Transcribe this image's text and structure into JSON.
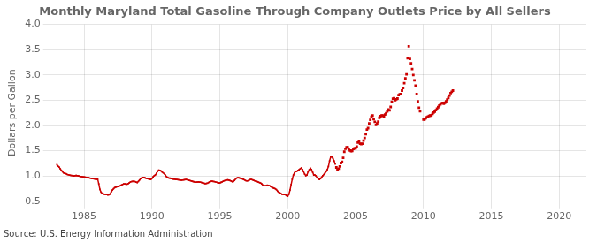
{
  "chart_data": {
    "type": "line",
    "title": "Monthly Maryland Total Gasoline Through Company Outlets Price by All Sellers",
    "y_label": "Dollars per Gallon",
    "source": "Source: U.S. Energy Information Administration",
    "xlim": [
      1982.5,
      2022
    ],
    "ylim": [
      0.5,
      4.0
    ],
    "xticks": [
      1985,
      1990,
      1995,
      2000,
      2005,
      2010,
      2015,
      2020
    ],
    "yticks": [
      0.5,
      {
        "value": 1.0,
        "label": "1.0"
      },
      1.5,
      {
        "value": 2.0,
        "label": "2.0"
      },
      2.5,
      {
        "value": 3.0,
        "label": "3.0"
      },
      3.5,
      {
        "value": 4.0,
        "label": "4.0"
      }
    ],
    "grid": true,
    "series": [
      {
        "type": "line",
        "color": "#cc0000",
        "marker": "square",
        "x": [
          1983.0,
          1983.083,
          1983.167,
          1983.25,
          1983.333,
          1983.417,
          1983.5,
          1983.583,
          1983.667,
          1983.75,
          1983.833,
          1983.917,
          1984.0,
          1984.083,
          1984.167,
          1984.25,
          1984.333,
          1984.417,
          1984.5,
          1984.583,
          1984.667,
          1984.75,
          1984.833,
          1984.917,
          1985.0,
          1985.083,
          1985.167,
          1985.25,
          1985.333,
          1985.417,
          1985.5,
          1985.583,
          1985.667,
          1985.75,
          1985.833,
          1985.917,
          1986.0,
          1986.083,
          1986.167,
          1986.25,
          1986.333,
          1986.417,
          1986.5,
          1986.583,
          1986.667,
          1986.75,
          1986.833,
          1986.917,
          1987.0,
          1987.083,
          1987.167,
          1987.25,
          1987.333,
          1987.417,
          1987.5,
          1987.583,
          1987.667,
          1987.75,
          1987.833,
          1987.917,
          1988.0,
          1988.083,
          1988.167,
          1988.25,
          1988.333,
          1988.417,
          1988.5,
          1988.583,
          1988.667,
          1988.75,
          1988.833,
          1988.917,
          1989.0,
          1989.083,
          1989.167,
          1989.25,
          1989.333,
          1989.417,
          1989.5,
          1989.583,
          1989.667,
          1989.75,
          1989.833,
          1989.917,
          1990.0,
          1990.083,
          1990.167,
          1990.25,
          1990.333,
          1990.417,
          1990.5,
          1990.583,
          1990.667,
          1990.75,
          1990.833,
          1990.917,
          1991.0,
          1991.083,
          1991.167,
          1991.25,
          1991.333,
          1991.417,
          1991.5,
          1991.583,
          1991.667,
          1991.75,
          1991.833,
          1991.917,
          1992.0,
          1992.083,
          1992.167,
          1992.25,
          1992.333,
          1992.417,
          1992.5,
          1992.583,
          1992.667,
          1992.75,
          1992.833,
          1992.917,
          1993.0,
          1993.083,
          1993.167,
          1993.25,
          1993.333,
          1993.417,
          1993.5,
          1993.583,
          1993.667,
          1993.75,
          1993.833,
          1993.917,
          1994.0,
          1994.083,
          1994.167,
          1994.25,
          1994.333,
          1994.417,
          1994.5,
          1994.583,
          1994.667,
          1994.75,
          1994.833,
          1994.917,
          1995.0,
          1995.083,
          1995.167,
          1995.25,
          1995.333,
          1995.417,
          1995.5,
          1995.583,
          1995.667,
          1995.75,
          1995.833,
          1995.917,
          1996.0,
          1996.083,
          1996.167,
          1996.25,
          1996.333,
          1996.417,
          1996.5,
          1996.583,
          1996.667,
          1996.75,
          1996.833,
          1996.917,
          1997.0,
          1997.083,
          1997.167,
          1997.25,
          1997.333,
          1997.417,
          1997.5,
          1997.583,
          1997.667,
          1997.75,
          1997.833,
          1997.917,
          1998.0,
          1998.083,
          1998.167,
          1998.25,
          1998.333,
          1998.417,
          1998.5,
          1998.583,
          1998.667,
          1998.75,
          1998.833,
          1998.917,
          1999.0,
          1999.083,
          1999.167,
          1999.25,
          1999.333,
          1999.417,
          1999.5,
          1999.583,
          1999.667,
          1999.75,
          1999.833,
          1999.917,
          2000.0,
          2000.083,
          2000.167,
          2000.25,
          2000.333,
          2000.417,
          2000.5,
          2000.583,
          2000.667,
          2000.75,
          2000.833,
          2000.917,
          2001.0,
          2001.083,
          2001.167,
          2001.25,
          2001.333,
          2001.417,
          2001.5,
          2001.583,
          2001.667,
          2001.75,
          2001.833,
          2001.917,
          2002.0,
          2002.083,
          2002.167,
          2002.25,
          2002.333,
          2002.417,
          2002.5,
          2002.583,
          2002.667,
          2002.75,
          2002.833,
          2002.917,
          2003.0,
          2003.083,
          2003.167,
          2003.25,
          2003.333,
          2003.417,
          2003.5
        ],
        "values": [
          1.224,
          1.196,
          1.176,
          1.14,
          1.109,
          1.083,
          1.06,
          1.053,
          1.046,
          1.032,
          1.025,
          1.019,
          1.013,
          1.01,
          1.007,
          1.003,
          1.007,
          1.01,
          1.007,
          1.003,
          0.997,
          0.99,
          0.987,
          0.983,
          0.98,
          0.977,
          0.973,
          0.97,
          0.967,
          0.96,
          0.955,
          0.95,
          0.947,
          0.943,
          0.94,
          0.937,
          0.94,
          0.843,
          0.733,
          0.68,
          0.657,
          0.647,
          0.64,
          0.637,
          0.633,
          0.627,
          0.63,
          0.643,
          0.687,
          0.72,
          0.747,
          0.77,
          0.78,
          0.787,
          0.793,
          0.8,
          0.807,
          0.82,
          0.833,
          0.843,
          0.843,
          0.84,
          0.837,
          0.847,
          0.867,
          0.883,
          0.89,
          0.893,
          0.893,
          0.89,
          0.88,
          0.87,
          0.893,
          0.92,
          0.95,
          0.963,
          0.97,
          0.973,
          0.963,
          0.953,
          0.95,
          0.943,
          0.937,
          0.93,
          0.953,
          0.983,
          1.007,
          1.023,
          1.053,
          1.093,
          1.117,
          1.113,
          1.1,
          1.08,
          1.06,
          1.043,
          1.013,
          0.983,
          0.97,
          0.96,
          0.957,
          0.95,
          0.943,
          0.94,
          0.937,
          0.933,
          0.93,
          0.927,
          0.923,
          0.92,
          0.917,
          0.92,
          0.923,
          0.927,
          0.93,
          0.927,
          0.92,
          0.913,
          0.907,
          0.9,
          0.893,
          0.887,
          0.88,
          0.877,
          0.88,
          0.883,
          0.88,
          0.877,
          0.87,
          0.863,
          0.857,
          0.85,
          0.853,
          0.857,
          0.87,
          0.883,
          0.893,
          0.897,
          0.893,
          0.89,
          0.883,
          0.877,
          0.87,
          0.863,
          0.863,
          0.873,
          0.883,
          0.897,
          0.907,
          0.913,
          0.92,
          0.923,
          0.917,
          0.91,
          0.9,
          0.887,
          0.893,
          0.913,
          0.943,
          0.96,
          0.967,
          0.963,
          0.957,
          0.95,
          0.943,
          0.933,
          0.92,
          0.907,
          0.903,
          0.907,
          0.92,
          0.93,
          0.93,
          0.923,
          0.913,
          0.903,
          0.897,
          0.89,
          0.88,
          0.87,
          0.86,
          0.843,
          0.82,
          0.81,
          0.807,
          0.81,
          0.817,
          0.813,
          0.807,
          0.793,
          0.78,
          0.767,
          0.757,
          0.747,
          0.73,
          0.7,
          0.68,
          0.667,
          0.65,
          0.64,
          0.637,
          0.633,
          0.63,
          0.613,
          0.6,
          0.637,
          0.72,
          0.83,
          0.937,
          1.02,
          1.063,
          1.09,
          1.093,
          1.11,
          1.123,
          1.143,
          1.157,
          1.13,
          1.087,
          1.037,
          1.007,
          1.02,
          1.083,
          1.123,
          1.153,
          1.127,
          1.077,
          1.02,
          1.02,
          1.0,
          0.967,
          0.943,
          0.93,
          0.947,
          0.977,
          1.007,
          1.03,
          1.06,
          1.093,
          1.127,
          1.19,
          1.3,
          1.377,
          1.383,
          1.347,
          1.297,
          1.237
        ]
      },
      {
        "type": "scatter",
        "color": "#cc0000",
        "marker": "square",
        "x": [
          2003.583,
          2003.667,
          2003.75,
          2003.833,
          2003.917,
          2004.0,
          2004.083,
          2004.167,
          2004.25,
          2004.333,
          2004.417,
          2004.5,
          2004.583,
          2004.667,
          2004.75,
          2004.833,
          2004.917,
          2005.0,
          2005.083,
          2005.167,
          2005.25,
          2005.333,
          2005.417,
          2005.5,
          2005.583,
          2005.667,
          2005.75,
          2005.833,
          2005.917,
          2006.0,
          2006.083,
          2006.167,
          2006.25,
          2006.333,
          2006.417,
          2006.5,
          2006.583,
          2006.667,
          2006.75,
          2006.833,
          2006.917,
          2007.0,
          2007.083,
          2007.167,
          2007.25,
          2007.333,
          2007.417,
          2007.5,
          2007.583,
          2007.667,
          2007.75,
          2007.833,
          2007.917,
          2008.0,
          2008.083,
          2008.167,
          2008.25,
          2008.333,
          2008.417,
          2008.5,
          2008.583,
          2008.667,
          2008.75,
          2008.833,
          2008.917,
          2009.0,
          2009.083,
          2009.167,
          2009.25,
          2009.333,
          2009.417,
          2009.5,
          2009.583,
          2009.667,
          2009.75,
          2010.0,
          2010.083,
          2010.167,
          2010.25,
          2010.333,
          2010.417,
          2010.5,
          2010.583,
          2010.667,
          2010.75,
          2010.833,
          2010.917,
          2011.0,
          2011.083,
          2011.167,
          2011.25,
          2011.333,
          2011.417,
          2011.5,
          2011.583,
          2011.667,
          2011.75,
          2011.833,
          2011.917,
          2012.0,
          2012.083,
          2012.167
        ],
        "values": [
          1.17,
          1.133,
          1.147,
          1.19,
          1.257,
          1.28,
          1.36,
          1.48,
          1.54,
          1.567,
          1.567,
          1.527,
          1.503,
          1.493,
          1.497,
          1.537,
          1.547,
          1.55,
          1.58,
          1.66,
          1.68,
          1.64,
          1.633,
          1.64,
          1.7,
          1.753,
          1.827,
          1.92,
          1.947,
          2.04,
          2.11,
          2.173,
          2.197,
          2.127,
          2.073,
          2.01,
          2.04,
          2.077,
          2.153,
          2.183,
          2.197,
          2.197,
          2.177,
          2.217,
          2.243,
          2.28,
          2.317,
          2.3,
          2.367,
          2.47,
          2.53,
          2.54,
          2.5,
          2.517,
          2.533,
          2.6,
          2.617,
          2.62,
          2.69,
          2.743,
          2.837,
          2.933,
          3.013,
          3.333,
          3.567,
          3.317,
          3.23,
          3.117,
          3.0,
          2.893,
          2.79,
          2.623,
          2.477,
          2.353,
          2.283,
          2.117,
          2.12,
          2.143,
          2.163,
          2.177,
          2.19,
          2.197,
          2.203,
          2.23,
          2.257,
          2.273,
          2.303,
          2.333,
          2.363,
          2.393,
          2.417,
          2.44,
          2.447,
          2.43,
          2.45,
          2.48,
          2.513,
          2.547,
          2.593,
          2.64,
          2.667,
          2.69
        ]
      }
    ]
  }
}
